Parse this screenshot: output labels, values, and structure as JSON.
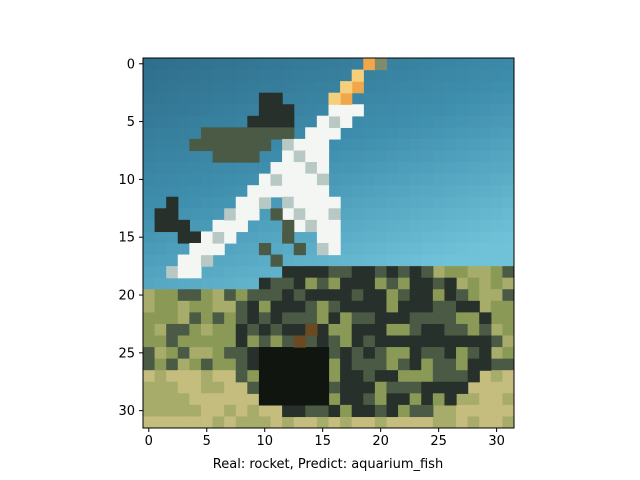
{
  "figure": {
    "caption": "Real: rocket, Predict: aquarium_fish",
    "background": "#ffffff"
  },
  "image_axes": {
    "grid_size": 32,
    "x_ticks": [
      "0",
      "5",
      "10",
      "15",
      "20",
      "25",
      "30"
    ],
    "y_ticks": [
      "0",
      "5",
      "10",
      "15",
      "20",
      "25",
      "30"
    ],
    "frame_color": "#000000"
  },
  "image": {
    "subject": "pixelated rocket launching on launchpad",
    "palette": {
      "sky_top": "#2f6f8c",
      "sky_mid": "#3f8fae",
      "sky_low": "#6fc2d8",
      "rocket_white": "#f4f6f4",
      "rocket_shadow": "#b8c8c4",
      "flame_orange": "#f0a64a",
      "flame_yellow": "#f6cf7a",
      "nose_green": "#7e8c6c",
      "structure_dark": "#27302a",
      "structure_mid": "#4a5a44",
      "ground_olive": "#8a9a56",
      "ground_tan": "#c4bd7e",
      "ground_dark": "#11150f",
      "rust": "#6a4a22"
    }
  }
}
